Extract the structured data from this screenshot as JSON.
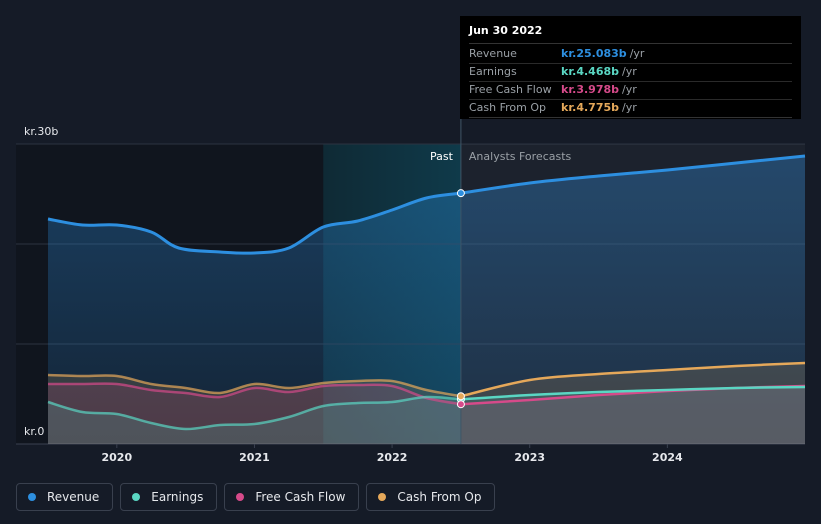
{
  "chart_data": {
    "type": "line",
    "y_unit_labels": {
      "top": "kr.30b",
      "bottom": "kr.0"
    },
    "ylim": [
      0,
      30
    ],
    "xlim": [
      2019.5,
      2025.0
    ],
    "x_ticks": [
      "2020",
      "2021",
      "2022",
      "2023",
      "2024"
    ],
    "x_tick_values": [
      2020,
      2021,
      2022,
      2023,
      2024
    ],
    "past_label": "Past",
    "forecast_label": "Analysts Forecasts",
    "divider_x": 2022.5,
    "series": [
      {
        "name": "Revenue",
        "color": "#2d8fe0",
        "points": [
          [
            2019.5,
            22.5
          ],
          [
            2019.75,
            21.9
          ],
          [
            2020.0,
            21.9
          ],
          [
            2020.25,
            21.2
          ],
          [
            2020.45,
            19.6
          ],
          [
            2020.75,
            19.2
          ],
          [
            2021.0,
            19.1
          ],
          [
            2021.25,
            19.6
          ],
          [
            2021.5,
            21.7
          ],
          [
            2021.75,
            22.3
          ],
          [
            2022.0,
            23.4
          ],
          [
            2022.25,
            24.6
          ],
          [
            2022.5,
            25.083
          ],
          [
            2023.0,
            26.1
          ],
          [
            2023.5,
            26.8
          ],
          [
            2024.0,
            27.4
          ],
          [
            2024.5,
            28.1
          ],
          [
            2025.0,
            28.8
          ]
        ]
      },
      {
        "name": "Earnings",
        "color": "#5ad6c3",
        "points": [
          [
            2019.5,
            4.2
          ],
          [
            2019.75,
            3.2
          ],
          [
            2020.0,
            3.0
          ],
          [
            2020.25,
            2.1
          ],
          [
            2020.5,
            1.5
          ],
          [
            2020.75,
            1.9
          ],
          [
            2021.0,
            2.0
          ],
          [
            2021.25,
            2.7
          ],
          [
            2021.5,
            3.8
          ],
          [
            2021.75,
            4.1
          ],
          [
            2022.0,
            4.2
          ],
          [
            2022.25,
            4.7
          ],
          [
            2022.5,
            4.468
          ],
          [
            2023.0,
            4.9
          ],
          [
            2023.5,
            5.2
          ],
          [
            2024.0,
            5.4
          ],
          [
            2024.5,
            5.6
          ],
          [
            2025.0,
            5.7
          ]
        ]
      },
      {
        "name": "Free Cash Flow",
        "color": "#d64a8a",
        "points": [
          [
            2019.5,
            6.0
          ],
          [
            2019.75,
            6.0
          ],
          [
            2020.0,
            6.0
          ],
          [
            2020.25,
            5.4
          ],
          [
            2020.5,
            5.1
          ],
          [
            2020.75,
            4.7
          ],
          [
            2021.0,
            5.6
          ],
          [
            2021.25,
            5.2
          ],
          [
            2021.5,
            5.8
          ],
          [
            2021.75,
            5.9
          ],
          [
            2022.0,
            5.8
          ],
          [
            2022.25,
            4.6
          ],
          [
            2022.5,
            3.978
          ],
          [
            2023.0,
            4.4
          ],
          [
            2023.5,
            4.9
          ],
          [
            2024.0,
            5.3
          ],
          [
            2024.5,
            5.6
          ],
          [
            2025.0,
            5.8
          ]
        ]
      },
      {
        "name": "Cash From Op",
        "color": "#e5a85a",
        "points": [
          [
            2019.5,
            6.9
          ],
          [
            2019.75,
            6.8
          ],
          [
            2020.0,
            6.8
          ],
          [
            2020.25,
            6.0
          ],
          [
            2020.5,
            5.6
          ],
          [
            2020.75,
            5.1
          ],
          [
            2021.0,
            6.0
          ],
          [
            2021.25,
            5.6
          ],
          [
            2021.5,
            6.1
          ],
          [
            2021.75,
            6.3
          ],
          [
            2022.0,
            6.3
          ],
          [
            2022.25,
            5.4
          ],
          [
            2022.5,
            4.775
          ],
          [
            2023.0,
            6.4
          ],
          [
            2023.5,
            7.0
          ],
          [
            2024.0,
            7.4
          ],
          [
            2024.5,
            7.8
          ],
          [
            2025.0,
            8.1
          ]
        ]
      }
    ],
    "tooltip": {
      "date": "Jun 30 2022",
      "unit": "/yr",
      "rows": [
        {
          "label": "Revenue",
          "value": "kr.25.083b",
          "color": "#2d8fe0"
        },
        {
          "label": "Earnings",
          "value": "kr.4.468b",
          "color": "#5ad6c3"
        },
        {
          "label": "Free Cash Flow",
          "value": "kr.3.978b",
          "color": "#d64a8a"
        },
        {
          "label": "Cash From Op",
          "value": "kr.4.775b",
          "color": "#e5a85a"
        }
      ]
    },
    "legend_placement": "bottom-left",
    "grid": true
  }
}
